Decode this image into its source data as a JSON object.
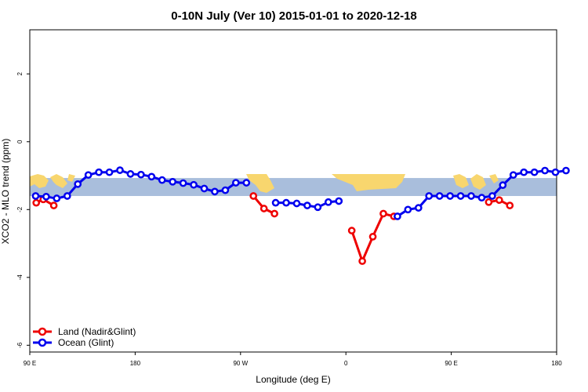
{
  "chart_data": {
    "type": "line",
    "title": "0-10N July (Ver 10)   2015-01-01 to 2020-12-18",
    "xlabel": "Longitude (deg E)",
    "ylabel": "XCO2 - MLO trend (ppm)",
    "xlim": [
      90,
      450
    ],
    "ylim": [
      -6.2,
      3.3
    ],
    "x_ticks": [
      {
        "value": 90,
        "label": "90 E"
      },
      {
        "value": 180,
        "label": "180"
      },
      {
        "value": 270,
        "label": "90 W"
      },
      {
        "value": 360,
        "label": "0"
      },
      {
        "value": 450,
        "label": "90 E"
      },
      {
        "value": 540,
        "label": "180"
      }
    ],
    "y_ticks": [
      {
        "value": 2,
        "label": "2"
      },
      {
        "value": 0,
        "label": "0"
      },
      {
        "value": -2,
        "label": "-2"
      },
      {
        "value": -4,
        "label": "-4"
      },
      {
        "value": -6,
        "label": "-6"
      }
    ],
    "land_band": {
      "y_top": -1.07,
      "y_bottom": -1.6,
      "ocean_color": "#a9bedc",
      "land_color": "#f8d66e"
    },
    "legend_position": "bottom-left",
    "series": [
      {
        "name": "Land (Nadir&Glint)",
        "color": "#ee0000",
        "segments": [
          {
            "x": [
              95.5,
              101.5,
              110.5
            ],
            "y": [
              -1.8,
              -1.7,
              -1.88
            ]
          },
          {
            "x": [
              281,
              290,
              299
            ],
            "y": [
              -1.6,
              -1.97,
              -2.12
            ]
          },
          {
            "x": [
              365,
              374,
              383,
              392,
              401
            ],
            "y": [
              -2.62,
              -3.52,
              -2.8,
              -2.12,
              -2.2
            ]
          },
          {
            "x": [
              482,
              491,
              500
            ],
            "y": [
              -1.78,
              -1.72,
              -1.88
            ]
          }
        ]
      },
      {
        "name": "Ocean (Glint)",
        "color": "#0000ee",
        "segments": [
          {
            "x": [
              95,
              104,
              113,
              122,
              131,
              140,
              149,
              158,
              167,
              176,
              185,
              194,
              203,
              212,
              221,
              230,
              239,
              248,
              257,
              266,
              275
            ],
            "y": [
              -1.6,
              -1.62,
              -1.67,
              -1.6,
              -1.25,
              -0.98,
              -0.9,
              -0.9,
              -0.84,
              -0.95,
              -0.97,
              -1.03,
              -1.13,
              -1.18,
              -1.22,
              -1.27,
              -1.38,
              -1.47,
              -1.43,
              -1.21,
              -1.21
            ]
          },
          {
            "x": [
              300,
              309,
              318,
              327,
              336,
              345,
              354
            ],
            "y": [
              -1.8,
              -1.8,
              -1.82,
              -1.88,
              -1.93,
              -1.78,
              -1.75
            ]
          },
          {
            "x": [
              404,
              413,
              422,
              431,
              440,
              449,
              458,
              467,
              476,
              485,
              494,
              503,
              512,
              521,
              530,
              539,
              548
            ],
            "y": [
              -2.2,
              -2.0,
              -1.95,
              -1.6,
              -1.6,
              -1.6,
              -1.6,
              -1.6,
              -1.65,
              -1.6,
              -1.28,
              -0.98,
              -0.9,
              -0.9,
              -0.85,
              -0.9,
              -0.85
            ]
          }
        ]
      }
    ]
  }
}
